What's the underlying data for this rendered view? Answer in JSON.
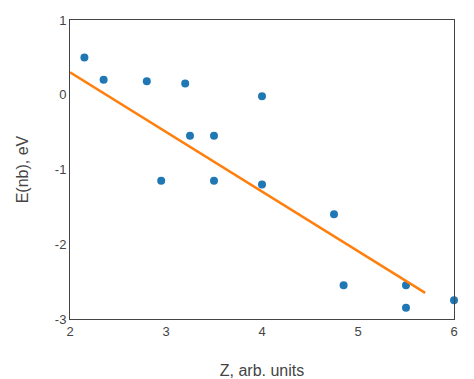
{
  "chart_data": {
    "type": "scatter",
    "xlabel": "Z, arb. units",
    "ylabel": "E(nb), eV",
    "series": [
      {
        "type": "scatter",
        "marker": "circle",
        "x": [
          2.15,
          2.35,
          2.8,
          3.2,
          3.25,
          3.5,
          2.95,
          3.5,
          4.0,
          4.0,
          4.75,
          5.5,
          4.85,
          5.5,
          6.0
        ],
        "values": [
          0.5,
          0.2,
          0.18,
          0.15,
          -0.55,
          -0.55,
          -1.15,
          -1.15,
          -0.02,
          -1.2,
          -1.6,
          -2.85,
          -2.55,
          -2.55,
          -2.75
        ]
      },
      {
        "type": "line",
        "line_style": "solid",
        "x": [
          2.0,
          5.7
        ],
        "values": [
          0.3,
          -2.65
        ]
      }
    ],
    "xlim": [
      2,
      6
    ],
    "ylim": [
      -3,
      1
    ],
    "xticks": [
      2,
      3,
      4,
      5,
      6
    ],
    "yticks": [
      -3,
      -2,
      -1,
      0,
      1
    ],
    "grid": false
  }
}
